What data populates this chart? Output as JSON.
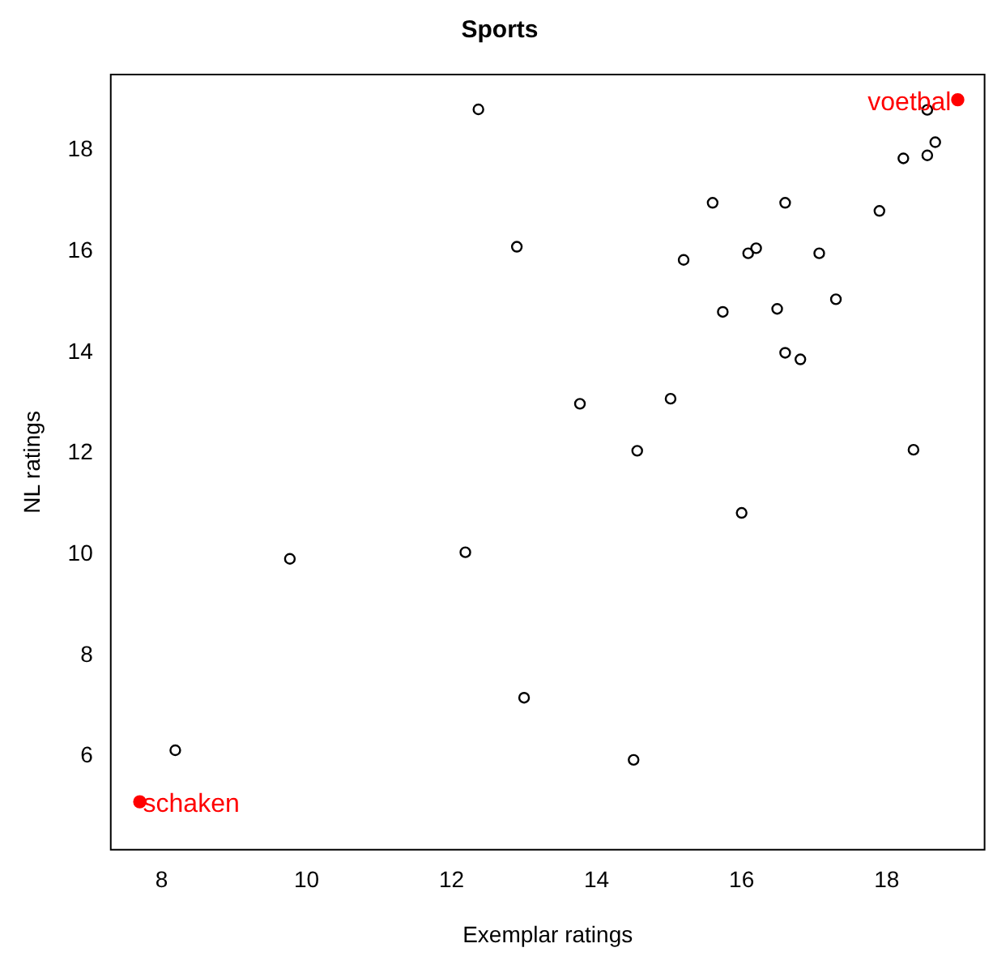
{
  "chart_data": {
    "type": "scatter",
    "title": "Sports",
    "xlabel": "Exemplar ratings",
    "ylabel": "NL ratings",
    "xlim": [
      7.3,
      19.35
    ],
    "ylim": [
      4.15,
      19.5
    ],
    "xticks": [
      8,
      10,
      12,
      14,
      16,
      18
    ],
    "yticks": [
      6,
      8,
      10,
      12,
      14,
      16,
      18
    ],
    "grid": false,
    "legend": false,
    "marker": "circle",
    "series": [
      {
        "color": "#000000",
        "x": [
          12.37,
          12.9,
          9.77,
          12.19,
          8.19,
          13.0,
          13.77,
          15.02,
          14.56,
          14.51,
          15.2,
          15.6,
          15.74,
          16.09,
          16.2,
          16.0,
          16.6,
          16.49,
          16.6,
          16.81,
          17.07,
          17.3,
          17.9,
          18.23,
          18.56,
          18.67,
          18.56,
          18.37
        ],
        "values": [
          18.81,
          16.09,
          9.91,
          10.04,
          6.12,
          7.16,
          12.98,
          13.08,
          12.05,
          5.93,
          15.83,
          16.96,
          14.8,
          15.96,
          16.06,
          10.82,
          16.96,
          14.86,
          13.99,
          13.86,
          15.96,
          15.05,
          16.8,
          17.84,
          17.9,
          18.16,
          18.8,
          12.07
        ]
      },
      {
        "color": "#ff0000",
        "x": [
          18.98,
          7.7
        ],
        "values": [
          19.0,
          5.1
        ]
      }
    ],
    "annotations": [
      {
        "text": "voetbal",
        "x": 18.98,
        "y": 19.0
      },
      {
        "text": "schaken",
        "x": 7.7,
        "y": 5.1
      }
    ]
  }
}
